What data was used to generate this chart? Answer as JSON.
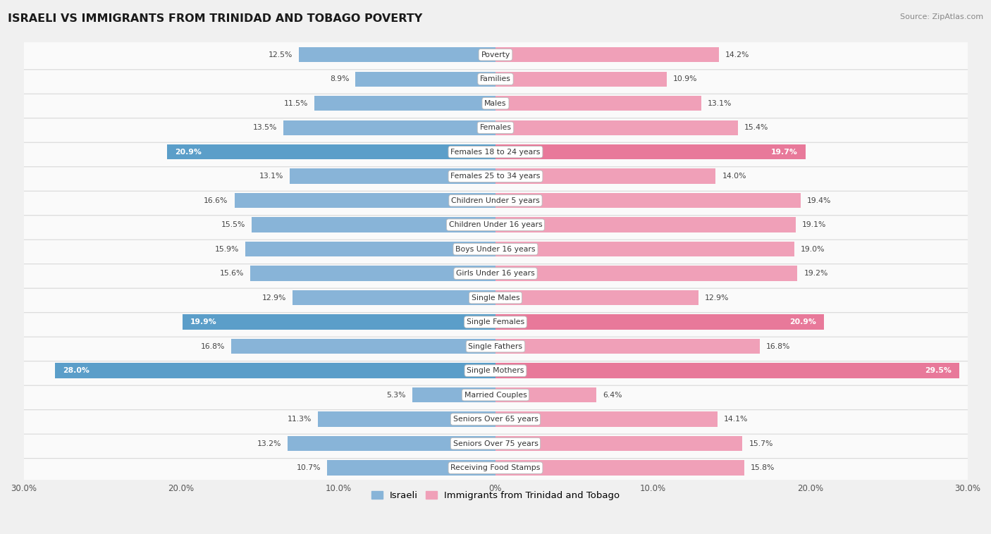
{
  "title": "ISRAELI VS IMMIGRANTS FROM TRINIDAD AND TOBAGO POVERTY",
  "source": "Source: ZipAtlas.com",
  "categories": [
    "Poverty",
    "Families",
    "Males",
    "Females",
    "Females 18 to 24 years",
    "Females 25 to 34 years",
    "Children Under 5 years",
    "Children Under 16 years",
    "Boys Under 16 years",
    "Girls Under 16 years",
    "Single Males",
    "Single Females",
    "Single Fathers",
    "Single Mothers",
    "Married Couples",
    "Seniors Over 65 years",
    "Seniors Over 75 years",
    "Receiving Food Stamps"
  ],
  "israeli": [
    12.5,
    8.9,
    11.5,
    13.5,
    20.9,
    13.1,
    16.6,
    15.5,
    15.9,
    15.6,
    12.9,
    19.9,
    16.8,
    28.0,
    5.3,
    11.3,
    13.2,
    10.7
  ],
  "immigrants": [
    14.2,
    10.9,
    13.1,
    15.4,
    19.7,
    14.0,
    19.4,
    19.1,
    19.0,
    19.2,
    12.9,
    20.9,
    16.8,
    29.5,
    6.4,
    14.1,
    15.7,
    15.8
  ],
  "color_israeli": "#88b4d8",
  "color_immigrants": "#f0a0b8",
  "color_israeli_highlight": "#5b9ec9",
  "color_immigrants_highlight": "#e8799a",
  "label_israeli": "Israeli",
  "label_immigrants": "Immigrants from Trinidad and Tobago",
  "axis_max": 30.0,
  "bg_color": "#f0f0f0",
  "row_bg_color": "#fafafa",
  "row_border_color": "#d8d8d8"
}
